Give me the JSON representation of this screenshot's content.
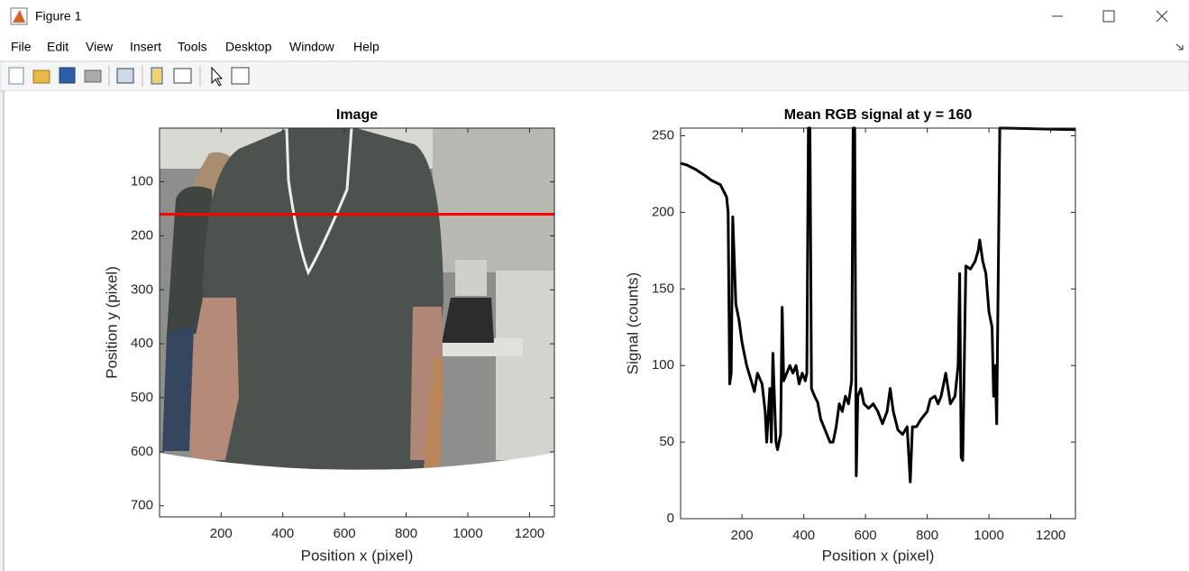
{
  "window": {
    "title": "Figure 1",
    "menu": [
      "File",
      "Edit",
      "View",
      "Insert",
      "Tools",
      "Desktop",
      "Window",
      "Help"
    ]
  },
  "chart_data": [
    {
      "type": "image",
      "title": "Image",
      "xlabel": "Position x (pixel)",
      "ylabel": "Position y (pixel)",
      "xlim": [
        0.5,
        1280.5
      ],
      "ylim": [
        0.5,
        720.5
      ],
      "y_reversed": true,
      "xticks": [
        200,
        400,
        600,
        800,
        1000,
        1200
      ],
      "yticks": [
        100,
        200,
        300,
        400,
        500,
        600,
        700
      ],
      "hline": {
        "y": 160,
        "color": "#ff0000"
      }
    },
    {
      "type": "line",
      "title": "Mean RGB signal at y = 160",
      "xlabel": "Position x (pixel)",
      "ylabel": "Signal (counts)",
      "xlim": [
        1,
        1280
      ],
      "ylim": [
        0,
        255
      ],
      "xticks": [
        200,
        400,
        600,
        800,
        1000,
        1200
      ],
      "yticks": [
        0,
        50,
        100,
        150,
        200,
        250
      ],
      "color": "#000000",
      "x": [
        1,
        20,
        50,
        80,
        100,
        130,
        150,
        155,
        160,
        165,
        170,
        180,
        190,
        200,
        215,
        230,
        240,
        250,
        265,
        275,
        280,
        290,
        295,
        300,
        310,
        315,
        325,
        330,
        335,
        345,
        355,
        365,
        375,
        385,
        395,
        405,
        410,
        415,
        420,
        425,
        435,
        445,
        455,
        465,
        475,
        485,
        495,
        505,
        515,
        525,
        535,
        545,
        555,
        560,
        565,
        570,
        575,
        585,
        595,
        610,
        625,
        640,
        655,
        670,
        680,
        690,
        705,
        720,
        735,
        745,
        752,
        765,
        780,
        800,
        810,
        825,
        835,
        845,
        860,
        875,
        890,
        900,
        905,
        910,
        915,
        925,
        940,
        955,
        965,
        970,
        980,
        990,
        1000,
        1010,
        1015,
        1020,
        1025,
        1035,
        1050,
        1280
      ],
      "values": [
        232,
        231,
        228,
        224,
        221,
        218,
        210,
        200,
        88,
        95,
        197,
        140,
        130,
        115,
        100,
        90,
        83,
        95,
        88,
        70,
        50,
        85,
        50,
        108,
        50,
        45,
        55,
        138,
        90,
        95,
        100,
        95,
        100,
        88,
        95,
        90,
        95,
        255,
        255,
        85,
        80,
        76,
        65,
        60,
        55,
        50,
        50,
        60,
        75,
        70,
        80,
        75,
        90,
        255,
        255,
        28,
        80,
        85,
        75,
        72,
        75,
        70,
        62,
        70,
        85,
        70,
        58,
        55,
        60,
        24,
        60,
        60,
        65,
        70,
        78,
        80,
        75,
        80,
        95,
        75,
        80,
        100,
        160,
        40,
        38,
        165,
        163,
        168,
        175,
        182,
        168,
        160,
        135,
        125,
        80,
        100,
        62,
        255,
        255,
        254
      ]
    }
  ]
}
